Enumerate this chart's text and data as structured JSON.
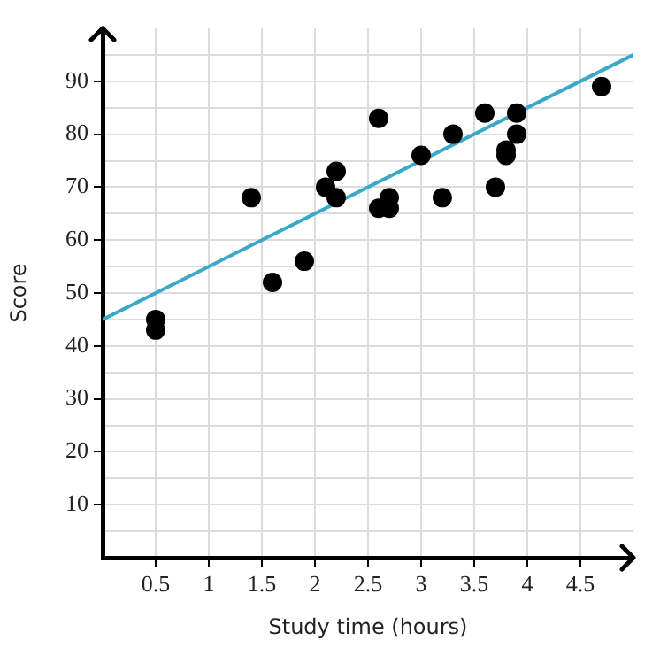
{
  "chart_data": {
    "type": "scatter",
    "xlabel": "Study time (hours)",
    "ylabel": "Score",
    "xlim": [
      0,
      5
    ],
    "ylim": [
      0,
      100
    ],
    "xticks": [
      0.5,
      1,
      1.5,
      2,
      2.5,
      3,
      3.5,
      4,
      4.5
    ],
    "yticks": [
      {
        "value": 5,
        "label": null
      },
      10,
      {
        "value": 15,
        "label": null
      },
      20,
      {
        "value": 25,
        "label": null
      },
      30,
      {
        "value": 35,
        "label": null
      },
      40,
      {
        "value": 45,
        "label": null
      },
      50,
      {
        "value": 55,
        "label": null
      },
      60,
      {
        "value": 65,
        "label": null
      },
      70,
      {
        "value": 75,
        "label": null
      },
      80,
      {
        "value": 85,
        "label": null
      },
      90,
      {
        "value": 95,
        "label": null
      }
    ],
    "grid": true,
    "marker": "circle",
    "series": [
      {
        "color": "#000000",
        "x": [
          0.5,
          0.5,
          1.4,
          1.6,
          1.9,
          2.1,
          2.2,
          2.2,
          2.6,
          2.6,
          2.7,
          2.7,
          3.0,
          3.2,
          3.3,
          3.6,
          3.7,
          3.8,
          3.8,
          3.9,
          3.9,
          4.7
        ],
        "values": [
          45,
          43,
          68,
          52,
          56,
          70,
          73,
          68,
          83,
          66,
          68,
          66,
          76,
          68,
          80,
          84,
          70,
          77,
          76,
          84,
          80,
          89
        ]
      },
      {
        "type": "line",
        "color": "#3aa8c8",
        "x": [
          0,
          5
        ],
        "values": [
          45,
          95
        ],
        "marker": "none"
      }
    ]
  }
}
